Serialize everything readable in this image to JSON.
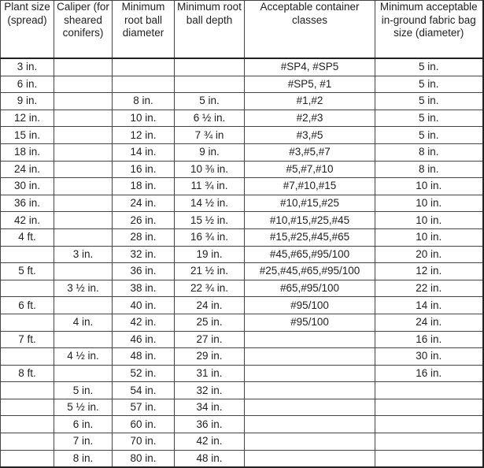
{
  "table": {
    "headers": [
      "Plant size (spread)",
      "Caliper (for sheared conifers)",
      "Minimum root ball diameter",
      "Minimum root ball depth",
      "Acceptable container classes",
      "Minimum acceptable in-ground fabric bag size (diameter)"
    ],
    "rows": [
      [
        "3 in.",
        "",
        "",
        "",
        "#SP4, #SP5",
        "5 in."
      ],
      [
        "6 in.",
        "",
        "",
        "",
        "#SP5, #1",
        "5 in."
      ],
      [
        "9 in.",
        "",
        "8 in.",
        "5 in.",
        "#1,#2",
        "5 in."
      ],
      [
        "12 in.",
        "",
        "10 in.",
        "6 ½ in.",
        "#2,#3",
        "5 in."
      ],
      [
        "15 in.",
        "",
        "12 in.",
        "7 ¾ in",
        "#3,#5",
        "5 in."
      ],
      [
        "18 in.",
        "",
        "14 in.",
        "9 in.",
        "#3,#5,#7",
        "8 in."
      ],
      [
        "24 in.",
        "",
        "16 in.",
        "10 ⅜ in.",
        "#5,#7,#10",
        "8 in."
      ],
      [
        "30 in.",
        "",
        "18 in.",
        "11 ¾ in.",
        "#7,#10,#15",
        "10 in."
      ],
      [
        "36 in.",
        "",
        "24 in.",
        "14 ½ in.",
        "#10,#15,#25",
        "10 in."
      ],
      [
        "42 in.",
        "",
        "26 in.",
        "15 ½ in.",
        "#10,#15,#25,#45",
        "10 in."
      ],
      [
        "4 ft.",
        "",
        "28 in.",
        "16 ¾ in.",
        "#15,#25,#45,#65",
        "10 in."
      ],
      [
        "",
        "3 in.",
        "32 in.",
        "19 in.",
        "#45,#65,#95/100",
        "20 in."
      ],
      [
        "5 ft.",
        "",
        "36 in.",
        "21 ½ in.",
        "#25,#45,#65,#95/100",
        "12 in."
      ],
      [
        "",
        "3 ½ in.",
        "38 in.",
        "22 ¾ in.",
        "#65,#95/100",
        "22 in."
      ],
      [
        "6 ft.",
        "",
        "40 in.",
        "24 in.",
        "#95/100",
        "14 in."
      ],
      [
        "",
        "4 in.",
        "42 in.",
        "25 in.",
        "#95/100",
        "24 in."
      ],
      [
        "7 ft.",
        "",
        "46 in.",
        "27 in.",
        "",
        "16 in."
      ],
      [
        "",
        "4 ½ in.",
        "48 in.",
        "29 in.",
        "",
        "30 in."
      ],
      [
        "8 ft.",
        "",
        "52 in.",
        "31 in.",
        "",
        "16 in."
      ],
      [
        "",
        "5 in.",
        "54 in.",
        "32 in.",
        "",
        ""
      ],
      [
        "",
        "5 ½ in.",
        "57 in.",
        "34 in.",
        "",
        ""
      ],
      [
        "",
        "6 in.",
        "60 in.",
        "36 in.",
        "",
        ""
      ],
      [
        "",
        "7 in.",
        "70 in.",
        "42 in.",
        "",
        ""
      ],
      [
        "",
        "8 in.",
        "80 in.",
        "48 in.",
        "",
        ""
      ]
    ]
  }
}
